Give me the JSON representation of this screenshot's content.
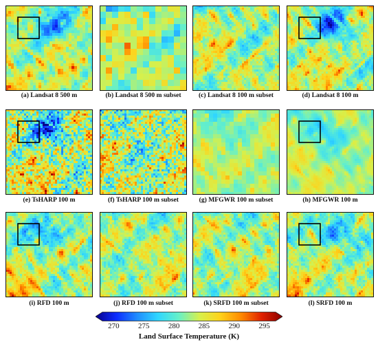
{
  "figure": {
    "panels": [
      {
        "id": "a",
        "caption": "(a) Landsat 8 500 m",
        "kind": "full",
        "texture": "blocky",
        "show_subset_box": true
      },
      {
        "id": "b",
        "caption": "(b) Landsat 8 500 m subset",
        "kind": "subset",
        "texture": "blocky",
        "show_subset_box": false
      },
      {
        "id": "c",
        "caption": "(c) Landsat 8 100 m subset",
        "kind": "subset",
        "texture": "detailed",
        "show_subset_box": false
      },
      {
        "id": "d",
        "caption": "(d) Landsat 8 100 m",
        "kind": "full",
        "texture": "detailed",
        "show_subset_box": true
      },
      {
        "id": "e",
        "caption": "(e) TsHARP 100 m",
        "kind": "full",
        "texture": "noisy",
        "show_subset_box": true
      },
      {
        "id": "f",
        "caption": "(f) TsHARP 100 m subset",
        "kind": "subset",
        "texture": "noisy",
        "show_subset_box": false
      },
      {
        "id": "g",
        "caption": "(g) MFGWR 100 m subset",
        "kind": "subset",
        "texture": "smooth",
        "show_subset_box": false
      },
      {
        "id": "h",
        "caption": "(h) MFGWR 100 m",
        "kind": "full",
        "texture": "smooth",
        "show_subset_box": true
      },
      {
        "id": "i",
        "caption": "(i) RFD 100 m",
        "kind": "full",
        "texture": "detailed",
        "show_subset_box": true
      },
      {
        "id": "j",
        "caption": "(j) RFD 100 m subset",
        "kind": "subset",
        "texture": "detailed",
        "show_subset_box": false
      },
      {
        "id": "k",
        "caption": "(k) SRFD 100 m subset",
        "kind": "subset",
        "texture": "detailed",
        "show_subset_box": false
      },
      {
        "id": "l",
        "caption": "(l) SRFD 100 m",
        "kind": "full",
        "texture": "detailed",
        "show_subset_box": true
      }
    ],
    "colorbar": {
      "title": "Land Surface Temperature (K)",
      "min": 267,
      "max": 298,
      "ticks": [
        270,
        275,
        280,
        285,
        290,
        295
      ],
      "colors": [
        "#08008a",
        "#0c2cff",
        "#1f8cff",
        "#2fd6ff",
        "#66f0c8",
        "#d6f04c",
        "#ffd21a",
        "#ff8a00",
        "#e02000",
        "#8a0000"
      ]
    }
  }
}
